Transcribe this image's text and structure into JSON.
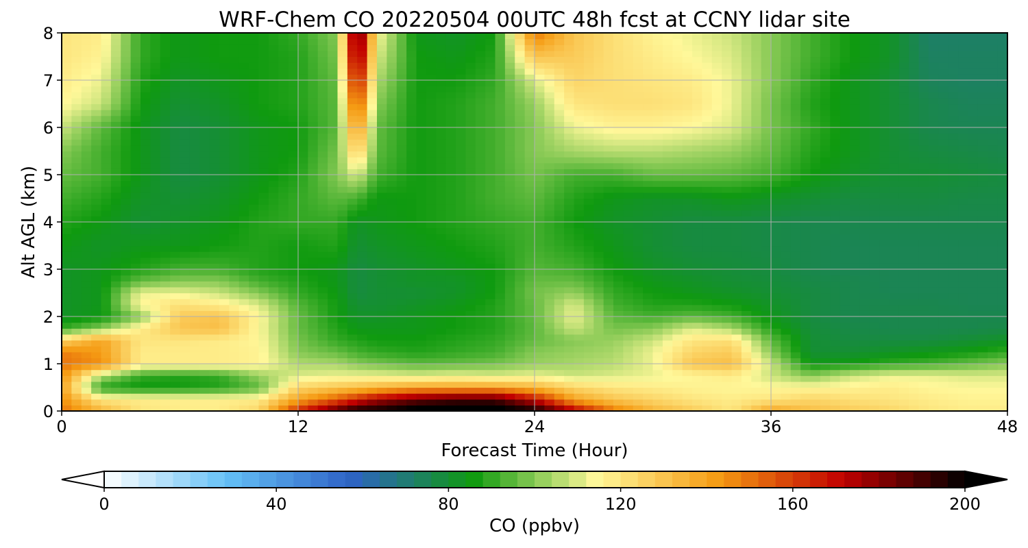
{
  "chart_data": {
    "type": "heatmap",
    "title": "WRF-Chem CO  20220504 00UTC 48h fcst at CCNY lidar site",
    "xlabel": "Forecast Time (Hour)",
    "ylabel": "Alt AGL (km)",
    "xlim": [
      0,
      48
    ],
    "ylim": [
      0,
      8
    ],
    "x_ticks": [
      0,
      12,
      24,
      36,
      48
    ],
    "y_ticks": [
      0,
      1,
      2,
      3,
      4,
      5,
      6,
      7,
      8
    ],
    "grid": true,
    "x": [
      0,
      2,
      4,
      6,
      8,
      10,
      12,
      14,
      15,
      16,
      18,
      20,
      22,
      24,
      26,
      28,
      30,
      32,
      34,
      36,
      38,
      40,
      42,
      44,
      46,
      48
    ],
    "y": [
      0,
      0.25,
      0.5,
      0.75,
      1,
      1.25,
      1.5,
      1.75,
      2,
      2.25,
      2.5,
      2.75,
      3,
      3.5,
      4,
      4.5,
      5,
      5.5,
      6,
      6.5,
      7,
      7.5,
      8
    ],
    "z_rows_by_altitude": [
      [
        150,
        135,
        120,
        118,
        118,
        125,
        165,
        190,
        200,
        200,
        205,
        205,
        205,
        200,
        175,
        150,
        135,
        128,
        120,
        140,
        132,
        128,
        125,
        120,
        118,
        118
      ],
      [
        145,
        120,
        118,
        117,
        117,
        118,
        140,
        155,
        165,
        175,
        185,
        190,
        190,
        170,
        140,
        130,
        125,
        120,
        118,
        120,
        125,
        122,
        120,
        118,
        116,
        116
      ],
      [
        140,
        88,
        85,
        86,
        88,
        95,
        125,
        130,
        132,
        135,
        140,
        140,
        140,
        135,
        125,
        120,
        118,
        116,
        115,
        115,
        115,
        116,
        118,
        115,
        114,
        114
      ],
      [
        145,
        105,
        90,
        88,
        90,
        102,
        110,
        112,
        112,
        112,
        110,
        112,
        110,
        112,
        108,
        110,
        112,
        115,
        118,
        108,
        100,
        108,
        112,
        112,
        110,
        110
      ],
      [
        150,
        145,
        118,
        118,
        118,
        116,
        105,
        104,
        100,
        98,
        95,
        96,
        98,
        102,
        104,
        106,
        112,
        130,
        132,
        108,
        85,
        86,
        90,
        92,
        96,
        100
      ],
      [
        148,
        142,
        118,
        118,
        118,
        116,
        100,
        96,
        92,
        90,
        88,
        90,
        92,
        100,
        102,
        104,
        112,
        125,
        128,
        100,
        80,
        80,
        82,
        84,
        86,
        90
      ],
      [
        125,
        140,
        120,
        120,
        118,
        115,
        98,
        90,
        88,
        86,
        86,
        88,
        90,
        96,
        100,
        102,
        108,
        120,
        122,
        95,
        80,
        78,
        78,
        78,
        80,
        82
      ],
      [
        90,
        100,
        118,
        130,
        132,
        114,
        96,
        88,
        84,
        84,
        84,
        86,
        88,
        95,
        108,
        98,
        100,
        110,
        104,
        88,
        79,
        77,
        76,
        76,
        76,
        77
      ],
      [
        82,
        85,
        100,
        128,
        130,
        115,
        96,
        86,
        82,
        82,
        84,
        86,
        88,
        96,
        112,
        95,
        92,
        95,
        92,
        84,
        78,
        76,
        76,
        76,
        76,
        76
      ],
      [
        82,
        84,
        115,
        122,
        118,
        110,
        94,
        86,
        80,
        80,
        82,
        84,
        88,
        96,
        110,
        92,
        88,
        88,
        86,
        82,
        78,
        76,
        76,
        76,
        75,
        75
      ],
      [
        82,
        84,
        112,
        112,
        108,
        100,
        90,
        85,
        78,
        80,
        80,
        82,
        86,
        98,
        102,
        90,
        86,
        84,
        82,
        80,
        78,
        76,
        75,
        75,
        75,
        75
      ],
      [
        82,
        84,
        96,
        100,
        100,
        92,
        88,
        84,
        78,
        80,
        82,
        82,
        86,
        96,
        96,
        88,
        84,
        82,
        80,
        79,
        77,
        76,
        75,
        75,
        75,
        75
      ],
      [
        82,
        84,
        88,
        92,
        92,
        88,
        86,
        84,
        78,
        80,
        82,
        84,
        86,
        94,
        92,
        86,
        82,
        80,
        79,
        78,
        76,
        75,
        75,
        75,
        75,
        75
      ],
      [
        85,
        82,
        84,
        84,
        86,
        88,
        86,
        88,
        80,
        82,
        84,
        86,
        88,
        92,
        88,
        84,
        80,
        78,
        78,
        77,
        76,
        75,
        75,
        75,
        75,
        75
      ],
      [
        88,
        85,
        80,
        82,
        84,
        88,
        90,
        90,
        82,
        84,
        86,
        88,
        90,
        92,
        86,
        82,
        80,
        78,
        78,
        77,
        76,
        76,
        76,
        76,
        76,
        76
      ],
      [
        92,
        88,
        82,
        80,
        82,
        86,
        90,
        95,
        92,
        85,
        86,
        88,
        92,
        95,
        88,
        84,
        82,
        82,
        84,
        82,
        80,
        78,
        78,
        78,
        77,
        77
      ],
      [
        96,
        92,
        84,
        78,
        80,
        84,
        88,
        100,
        110,
        92,
        86,
        88,
        92,
        98,
        92,
        92,
        96,
        96,
        95,
        92,
        86,
        82,
        80,
        80,
        79,
        78
      ],
      [
        100,
        92,
        84,
        78,
        80,
        84,
        86,
        98,
        130,
        95,
        86,
        88,
        92,
        100,
        104,
        106,
        106,
        104,
        102,
        96,
        88,
        84,
        80,
        78,
        77,
        76
      ],
      [
        108,
        95,
        84,
        78,
        80,
        84,
        86,
        95,
        145,
        96,
        86,
        88,
        92,
        100,
        112,
        116,
        116,
        114,
        110,
        98,
        90,
        84,
        80,
        76,
        75,
        75
      ],
      [
        115,
        108,
        86,
        80,
        82,
        86,
        88,
        95,
        160,
        100,
        86,
        88,
        92,
        102,
        120,
        122,
        122,
        120,
        112,
        98,
        88,
        84,
        80,
        76,
        74,
        74
      ],
      [
        118,
        112,
        88,
        82,
        84,
        86,
        88,
        96,
        175,
        105,
        86,
        86,
        90,
        110,
        125,
        122,
        120,
        118,
        112,
        100,
        90,
        84,
        80,
        74,
        73,
        73
      ],
      [
        120,
        116,
        90,
        84,
        86,
        86,
        88,
        98,
        188,
        110,
        86,
        84,
        88,
        130,
        128,
        122,
        118,
        114,
        110,
        100,
        92,
        86,
        82,
        73,
        73,
        73
      ],
      [
        120,
        118,
        90,
        84,
        86,
        86,
        90,
        100,
        195,
        115,
        84,
        82,
        86,
        150,
        130,
        122,
        116,
        112,
        108,
        100,
        92,
        86,
        82,
        72,
        72,
        72
      ]
    ],
    "colorbar": {
      "label": "CO  (ppbv)",
      "min": 0,
      "max": 200,
      "ticks": [
        0,
        40,
        80,
        120,
        160,
        200
      ],
      "extend": "both",
      "colors": [
        "#ffffff",
        "#64c0f6",
        "#2e62c6",
        "#0f9a0f",
        "#fff89a",
        "#f59a12",
        "#c10000",
        "#000000"
      ]
    }
  }
}
